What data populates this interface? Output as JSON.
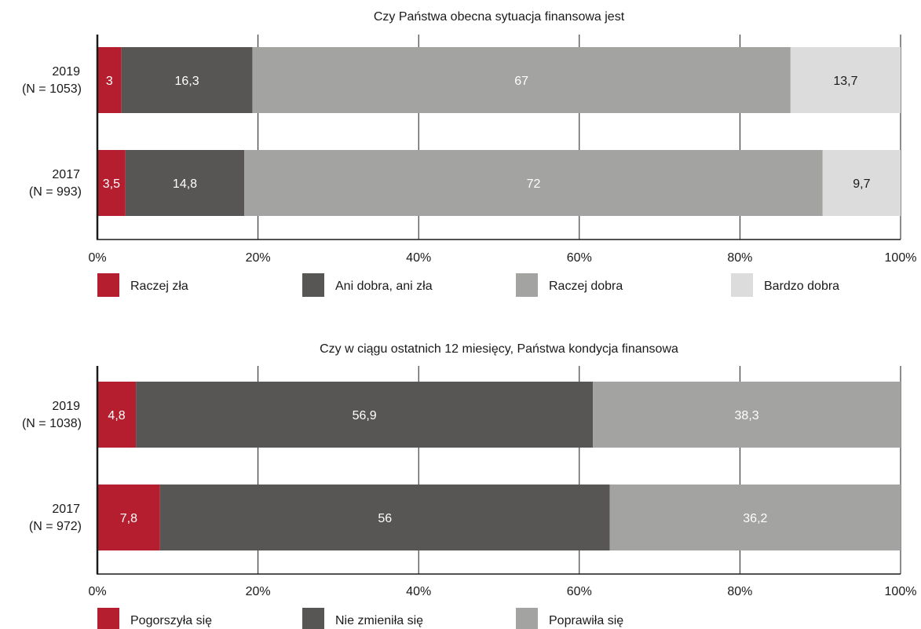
{
  "chart_data": [
    {
      "type": "bar",
      "orientation": "horizontal",
      "stacked": true,
      "title": "Czy Państwa obecna sytuacja finansowa jest",
      "categories": [
        {
          "year": "2019",
          "n": "(N = 1053)"
        },
        {
          "year": "2017",
          "n": "(N = 993)"
        }
      ],
      "series": [
        {
          "name": "Raczej zła",
          "color": "#b51e2e",
          "label_color": "#ffffff",
          "values": [
            3,
            3.5
          ],
          "labels": [
            "3",
            "3,5"
          ]
        },
        {
          "name": "Ani dobra, ani zła",
          "color": "#575655",
          "label_color": "#ffffff",
          "values": [
            16.3,
            14.8
          ],
          "labels": [
            "16,3",
            "14,8"
          ]
        },
        {
          "name": "Raczej dobra",
          "color": "#a3a3a2",
          "label_color": "#ffffff",
          "values": [
            67,
            72
          ],
          "labels": [
            "67",
            "72"
          ]
        },
        {
          "name": "Bardzo dobra",
          "color": "#dcdcdc",
          "label_color": "#1a1a1a",
          "values": [
            13.7,
            9.7
          ],
          "labels": [
            "13,7",
            "9,7"
          ]
        }
      ],
      "xlim": [
        0,
        100
      ],
      "x_ticks": [
        "0%",
        "20%",
        "40%",
        "60%",
        "80%",
        "100%"
      ],
      "grid": true,
      "legend_position": "bottom"
    },
    {
      "type": "bar",
      "orientation": "horizontal",
      "stacked": true,
      "title": "Czy w ciągu ostatnich 12 miesięcy, Państwa kondycja finansowa",
      "categories": [
        {
          "year": "2019",
          "n": "(N = 1038)"
        },
        {
          "year": "2017",
          "n": "(N = 972)"
        }
      ],
      "series": [
        {
          "name": "Pogorszyła się",
          "color": "#b51e2e",
          "label_color": "#ffffff",
          "values": [
            4.8,
            7.8
          ],
          "labels": [
            "4,8",
            "7,8"
          ]
        },
        {
          "name": "Nie zmieniła się",
          "color": "#575655",
          "label_color": "#ffffff",
          "values": [
            56.9,
            56
          ],
          "labels": [
            "56,9",
            "56"
          ]
        },
        {
          "name": "Poprawiła się",
          "color": "#a3a3a2",
          "label_color": "#ffffff",
          "values": [
            38.3,
            36.2
          ],
          "labels": [
            "38,3",
            "36,2"
          ]
        }
      ],
      "xlim": [
        0,
        100
      ],
      "x_ticks": [
        "0%",
        "20%",
        "40%",
        "60%",
        "80%",
        "100%"
      ],
      "grid": true,
      "legend_position": "bottom"
    }
  ]
}
